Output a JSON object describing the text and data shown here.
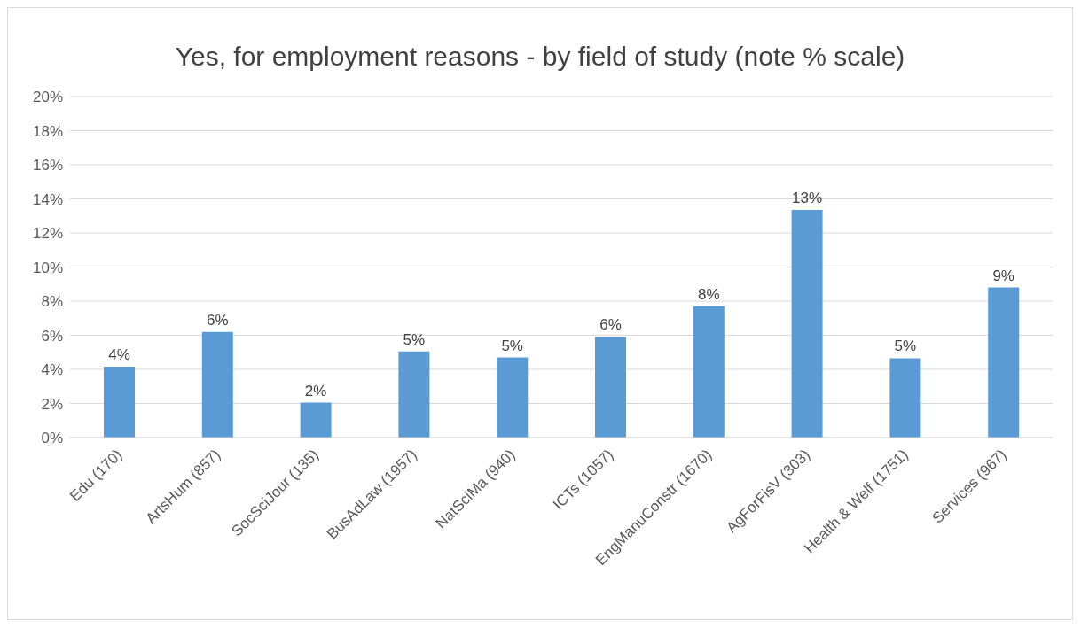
{
  "chart_data": {
    "type": "bar",
    "title": "Yes, for employment reasons - by field of study (note % scale)",
    "categories": [
      "Edu (170)",
      "ArtsHum (857)",
      "SocSciJour (135)",
      "BusAdLaw (1957)",
      "NatSciMa (940)",
      "ICTs (1057)",
      "EngManuConstr (1670)",
      "AgForFisV (303)",
      "Health & Welf (1751)",
      "Services (967)"
    ],
    "values": [
      4.15,
      6.2,
      2.05,
      5.05,
      4.7,
      5.9,
      7.7,
      13.35,
      4.65,
      8.8
    ],
    "value_labels": [
      "4%",
      "6%",
      "2%",
      "5%",
      "5%",
      "6%",
      "8%",
      "13%",
      "5%",
      "9%"
    ],
    "color": "#5b9bd5",
    "ylim": [
      0,
      20
    ],
    "yticks": [
      {
        "value": 0,
        "label": "0%"
      },
      {
        "value": 2,
        "label": "2%"
      },
      {
        "value": 4,
        "label": "4%"
      },
      {
        "value": 6,
        "label": "6%"
      },
      {
        "value": 8,
        "label": "8%"
      },
      {
        "value": 10,
        "label": "10%"
      },
      {
        "value": 12,
        "label": "12%"
      },
      {
        "value": 14,
        "label": "14%"
      },
      {
        "value": 16,
        "label": "16%"
      },
      {
        "value": 18,
        "label": "18%"
      },
      {
        "value": 20,
        "label": "20%"
      }
    ],
    "grid": "y"
  }
}
